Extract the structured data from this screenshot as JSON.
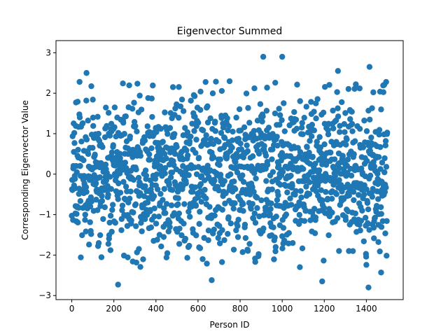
{
  "chart_data": {
    "type": "scatter",
    "title": "Eigenvector Summed",
    "xlabel": "Person ID",
    "ylabel": "Corresponding Eigenvector Value",
    "xlim": [
      -75,
      1575
    ],
    "ylim": [
      -3.1,
      3.3
    ],
    "xticks": [
      0,
      200,
      400,
      600,
      800,
      1000,
      1200,
      1400
    ],
    "yticks": [
      -3,
      -2,
      -1,
      0,
      1,
      2,
      3
    ],
    "grid": false,
    "legend": "none",
    "marker_color": "#1f77b4",
    "n_points": 1500,
    "outliers": [
      {
        "x": 70,
        "y": 2.5
      },
      {
        "x": 910,
        "y": 2.9
      },
      {
        "x": 1000,
        "y": 2.9
      },
      {
        "x": 1265,
        "y": 2.55
      },
      {
        "x": 1415,
        "y": 2.65
      },
      {
        "x": 220,
        "y": -2.73
      },
      {
        "x": 665,
        "y": -2.62
      },
      {
        "x": 1190,
        "y": -2.65
      },
      {
        "x": 1410,
        "y": -2.8
      },
      {
        "x": 1470,
        "y": -2.43
      }
    ]
  }
}
